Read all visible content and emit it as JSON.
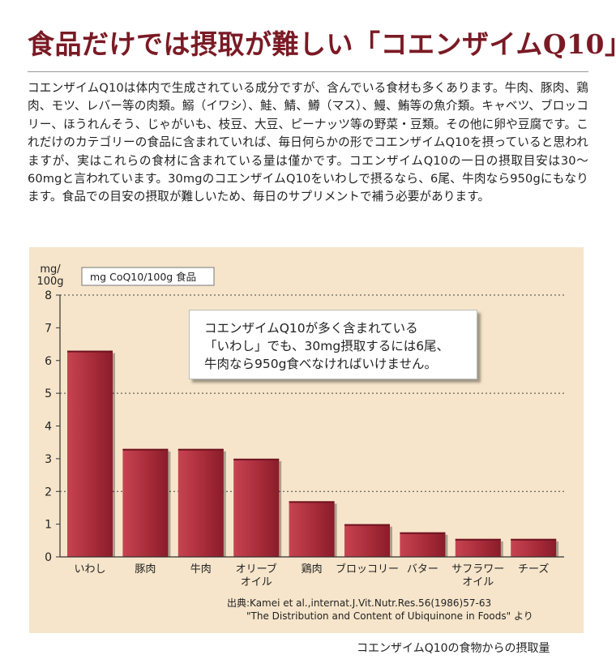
{
  "title": "食品だけでは摂取が難しい「コエンザイムQ10」",
  "body_text": "コエンザイムQ10は体内で生成されている成分ですが、含んでいる食材も多くあります。牛肉、豚肉、鶏肉、モツ、レバー等の肉類。鰯（イワシ）、鮭、鯖、鱒（マス）、鰻、鮪等の魚介類。キャベツ、ブロッコリー、ほうれんそう、じゃがいも、枝豆、大豆、ピーナッツ等の野菜・豆類。その他に卵や豆腐です。これだけのカテゴリーの食品に含まれていれば、毎日何らかの形でコエンザイムQ10を摂っていると思われますが、実はこれらの食材に含まれている量は僅かです。コエンザイムQ10の一日の摂取目安は30～60mgと言われています。30mgのコエンザイムQ10をいわしで摂るなら、6尾、牛肉なら950gにもなります。食品での目安の摂取が難しいため、毎日のサプリメントで補う必要があります。",
  "callout": {
    "line1": "コエンザイムQ10が多く含まれている",
    "line2": "「いわし」でも、30mg摂取するには6尾、",
    "line3": "牛肉なら950g食べなければいけません。"
  },
  "caption": "コエンザイムQ10の食物からの摂取量",
  "colors": {
    "title": "#7a1a24",
    "panel_bg": "#f6e5ca",
    "bar_light": "#c23e4c",
    "bar_dark": "#8e1e2b"
  },
  "chart_data": {
    "type": "bar",
    "unit_label_line1": "mg/",
    "unit_label_line2": "100g",
    "legend_label": "mg CoQ10/100g 食品",
    "ylim": [
      0,
      8
    ],
    "yticks": [
      0,
      1,
      2,
      3,
      4,
      5,
      6,
      7,
      8
    ],
    "dashed_gridlines": [
      2,
      5,
      8
    ],
    "categories": [
      [
        "いわし"
      ],
      [
        "豚肉"
      ],
      [
        "牛肉"
      ],
      [
        "オリーブ",
        "オイル"
      ],
      [
        "鶏肉"
      ],
      [
        "ブロッコリー"
      ],
      [
        "バター"
      ],
      [
        "サフラワー",
        "オイル"
      ],
      [
        "チーズ"
      ]
    ],
    "values": [
      6.3,
      3.3,
      3.3,
      3.0,
      1.7,
      1.0,
      0.75,
      0.55,
      0.55
    ],
    "source_line1": "出典:Kamei et al.,internat.J.Vit.Nutr.Res.56(1986)57-63",
    "source_line2": "\"The Distribution and Content of Ubiquinone in Foods\" より"
  }
}
